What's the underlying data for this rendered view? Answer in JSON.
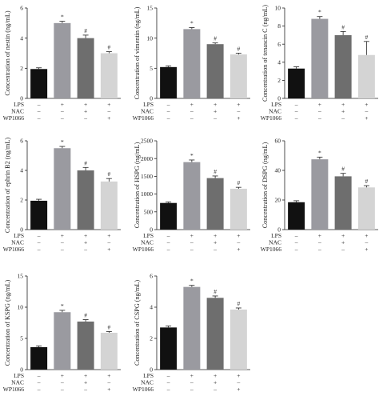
{
  "figure": {
    "treatments": [
      "LPS",
      "NAC",
      "WP1066"
    ],
    "marks": {
      "on": "+",
      "off": "–"
    },
    "treatment_matrix": [
      [
        "–",
        "–",
        "–"
      ],
      [
        "+",
        "–",
        "–"
      ],
      [
        "+",
        "+",
        "–"
      ],
      [
        "+",
        "–",
        "+"
      ]
    ],
    "colors": {
      "bars": [
        "#111111",
        "#9a9aa0",
        "#6e6e6e",
        "#d4d4d4"
      ]
    }
  },
  "chart_data": [
    {
      "type": "bar",
      "ylabel": "Concentration of nestin (ng/mL)",
      "ylim": [
        0,
        6
      ],
      "ticks": [
        0,
        2,
        4,
        6
      ],
      "values": [
        1.95,
        5.0,
        4.0,
        3.0
      ],
      "errors": [
        0.08,
        0.12,
        0.2,
        0.1
      ],
      "annotations": [
        "",
        "*",
        "#",
        "#"
      ]
    },
    {
      "type": "bar",
      "ylabel": "Concentration of vimentin (ng/mL)",
      "ylim": [
        0,
        15
      ],
      "ticks": [
        0,
        5,
        10,
        15
      ],
      "values": [
        5.2,
        11.5,
        9.0,
        7.3
      ],
      "errors": [
        0.2,
        0.25,
        0.2,
        0.2
      ],
      "annotations": [
        "",
        "*",
        "#",
        "#"
      ]
    },
    {
      "type": "bar",
      "ylabel": "Concentration of tenascin C (ng/mL)",
      "ylim": [
        0,
        10
      ],
      "ticks": [
        0,
        2,
        4,
        6,
        8,
        10
      ],
      "values": [
        3.3,
        8.8,
        7.0,
        4.8
      ],
      "errors": [
        0.2,
        0.25,
        0.4,
        1.5
      ],
      "annotations": [
        "",
        "*",
        "#",
        "#"
      ]
    },
    {
      "type": "bar",
      "ylabel": "Concentration of ephrin B2 (ng/mL)",
      "ylim": [
        0,
        6
      ],
      "ticks": [
        0,
        2,
        4,
        6
      ],
      "values": [
        1.95,
        5.5,
        4.0,
        3.25
      ],
      "errors": [
        0.1,
        0.12,
        0.2,
        0.2
      ],
      "annotations": [
        "",
        "*",
        "#",
        "#"
      ]
    },
    {
      "type": "bar",
      "ylabel": "Concentration of HSPG (ng/mL)",
      "ylim": [
        0,
        2500
      ],
      "ticks": [
        0,
        500,
        1000,
        1500,
        2000,
        2500
      ],
      "values": [
        750,
        1900,
        1450,
        1150
      ],
      "errors": [
        30,
        60,
        60,
        40
      ],
      "annotations": [
        "",
        "*",
        "#",
        "#"
      ]
    },
    {
      "type": "bar",
      "ylabel": "Concentration of DSPG (ng/mL)",
      "ylim": [
        0,
        60
      ],
      "ticks": [
        0,
        20,
        40,
        60
      ],
      "values": [
        18.5,
        47.5,
        36.0,
        28.5
      ],
      "errors": [
        1.0,
        1.5,
        2.0,
        1.2
      ],
      "annotations": [
        "",
        "*",
        "#",
        "#"
      ]
    },
    {
      "type": "bar",
      "ylabel": "Concentration of KSPG (ng/mL)",
      "ylim": [
        0,
        15
      ],
      "ticks": [
        0,
        5,
        10,
        15
      ],
      "values": [
        3.6,
        9.2,
        7.7,
        5.9
      ],
      "errors": [
        0.2,
        0.3,
        0.3,
        0.2
      ],
      "annotations": [
        "",
        "*",
        "#",
        "#"
      ]
    },
    {
      "type": "bar",
      "ylabel": "Concentration of CSPG (ng/mL)",
      "ylim": [
        0,
        6
      ],
      "ticks": [
        0,
        2,
        4,
        6
      ],
      "values": [
        2.7,
        5.3,
        4.6,
        3.85
      ],
      "errors": [
        0.1,
        0.1,
        0.12,
        0.1
      ],
      "annotations": [
        "",
        "*",
        "#",
        "#"
      ]
    }
  ]
}
